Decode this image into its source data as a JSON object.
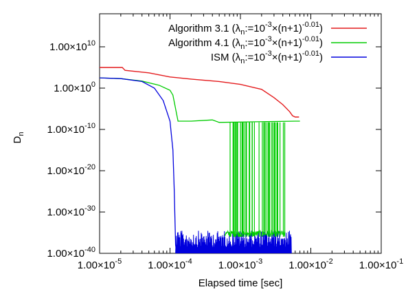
{
  "chart_data": {
    "type": "line",
    "title": "",
    "xlabel": "Elapsed time [sec]",
    "ylabel": "D_n",
    "x_scale": "log",
    "y_scale": "log",
    "xlim": [
      1e-05,
      0.1
    ],
    "ylim": [
      1e-40,
      1e+18
    ],
    "grid": false,
    "legend_position": "top-right",
    "x_ticks": [
      {
        "value": 1e-05,
        "label": "1.00×10",
        "exp": "-5"
      },
      {
        "value": 0.0001,
        "label": "1.00×10",
        "exp": "-4"
      },
      {
        "value": 0.001,
        "label": "1.00×10",
        "exp": "-3"
      },
      {
        "value": 0.01,
        "label": "1.00×10",
        "exp": "-2"
      },
      {
        "value": 0.1,
        "label": "1.00×10",
        "exp": "-1"
      }
    ],
    "y_ticks": [
      {
        "value": 1e-40,
        "label": "1.00×10",
        "exp": "-40"
      },
      {
        "value": 1e-30,
        "label": "1.00×10",
        "exp": "-30"
      },
      {
        "value": 1e-20,
        "label": "1.00×10",
        "exp": "-20"
      },
      {
        "value": 1e-10,
        "label": "1.00×10",
        "exp": "-10"
      },
      {
        "value": 1,
        "label": "1.00×10",
        "exp": "0"
      },
      {
        "value": 10000000000.0,
        "label": "1.00×10",
        "exp": "10"
      }
    ],
    "series": [
      {
        "name": "Algorithm 3.1 (λn:=10^-3×(n+1)^-0.01)",
        "legend_main": "Algorithm 3.1 (λ",
        "legend_sub": "n",
        "legend_mid1": ":=10",
        "legend_exp1": "-3",
        "legend_mid2": "×(n+1)",
        "legend_exp2": "-0.01",
        "legend_end": ")",
        "color": "#e41a1c",
        "points": [
          [
            1e-05,
            100000.0
          ],
          [
            2.1e-05,
            100000.0
          ],
          [
            2.3e-05,
            20000.0
          ],
          [
            5e-05,
            5000.0
          ],
          [
            0.0001,
            500.0
          ],
          [
            0.0002,
            150
          ],
          [
            0.0005,
            40
          ],
          [
            0.001,
            8
          ],
          [
            0.002,
            0.5
          ],
          [
            0.003,
            0.005
          ],
          [
            0.004,
            0.0001
          ],
          [
            0.005,
            2e-06
          ],
          [
            0.0055,
            2e-07
          ],
          [
            0.006,
            1e-07
          ],
          [
            0.0068,
            1e-07
          ]
        ]
      },
      {
        "name": "Algorithm 4.1 (λn:=10^-3×(n+1)^-0.01)",
        "legend_main": "Algorithm 4.1 (λ",
        "legend_sub": "n",
        "legend_mid1": ":=10",
        "legend_exp1": "-3",
        "legend_mid2": "×(n+1)",
        "legend_exp2": "-0.01",
        "legend_end": ")",
        "color": "#00cc00",
        "points": [
          [
            1e-05,
            300
          ],
          [
            2e-05,
            200
          ],
          [
            4e-05,
            50
          ],
          [
            7e-05,
            5
          ],
          [
            0.0001,
            0.3
          ],
          [
            0.00011,
            0.02
          ],
          [
            0.00013,
            1e-08
          ],
          [
            0.0002,
            1e-08
          ],
          [
            0.0004,
            2e-08
          ],
          [
            0.0005,
            5e-09
          ],
          [
            0.006,
            1e-08
          ],
          [
            0.007,
            1e-08
          ]
        ],
        "spikes": {
          "floor_x_range": [
            0.00057,
            0.0043
          ],
          "floor_y": 1e-36,
          "top_y": 5e-09,
          "count": 40
        }
      },
      {
        "name": "ISM (λn:=10^-3×(n+1)^-0.01)",
        "legend_main": "ISM (λ",
        "legend_sub": "n",
        "legend_mid1": ":=10",
        "legend_exp1": "-3",
        "legend_mid2": "×(n+1)",
        "legend_exp2": "-0.01",
        "legend_end": ")",
        "color": "#0000dd",
        "points": [
          [
            1e-05,
            300
          ],
          [
            2e-05,
            200
          ],
          [
            4e-05,
            40
          ],
          [
            6e-05,
            1
          ],
          [
            8e-05,
            0.001
          ],
          [
            0.0001,
            1e-08
          ],
          [
            0.00011,
            1e-15
          ],
          [
            0.000115,
            1e-25
          ],
          [
            0.00012,
            1e-38
          ],
          [
            0.000125,
            1e-40
          ]
        ],
        "noise": {
          "x_range": [
            0.00012,
            0.0053
          ],
          "low_y": 1e-40,
          "high_y": 3e-35
        }
      }
    ]
  }
}
